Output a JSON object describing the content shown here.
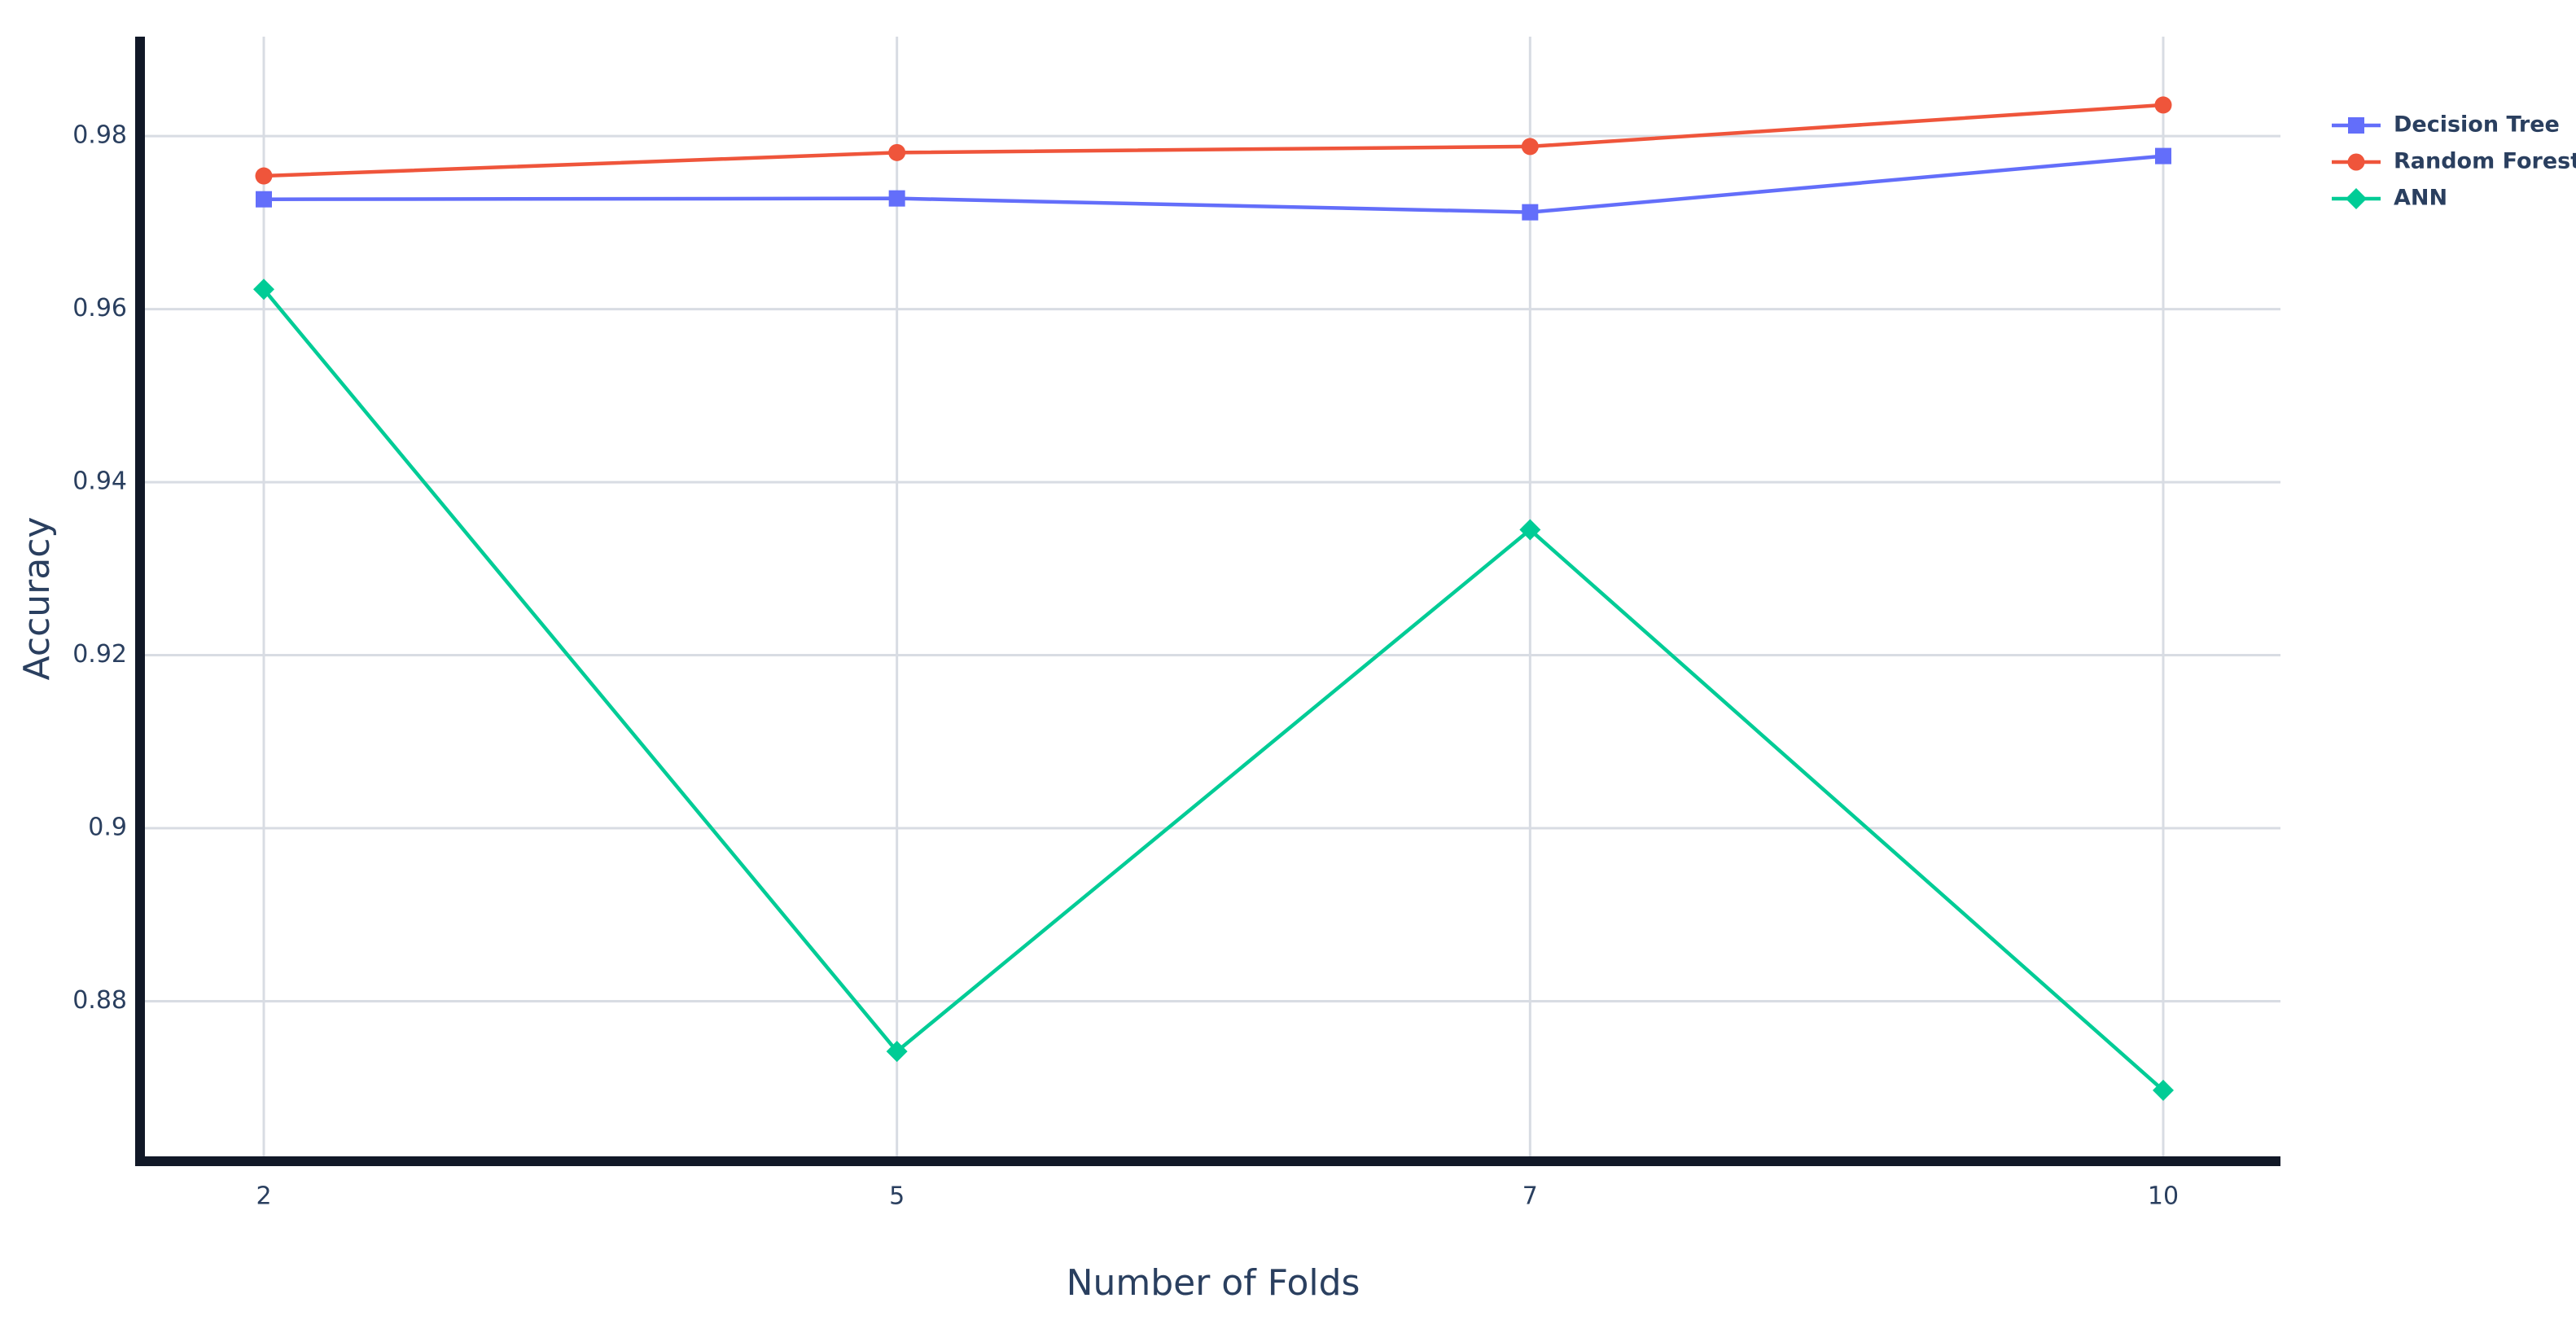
{
  "chart_data": {
    "type": "line",
    "x_label": "Number of Folds",
    "y_label": "Accuracy",
    "categories": [
      "2",
      "5",
      "7",
      "10"
    ],
    "series": [
      {
        "name": "Decision Tree",
        "color": "#636efa",
        "marker": "square",
        "values": [
          0.9727,
          0.9728,
          0.9712,
          0.9777
        ]
      },
      {
        "name": "Random Forest",
        "color": "#ef553b",
        "marker": "circle",
        "values": [
          0.9754,
          0.9781,
          0.9788,
          0.9836
        ]
      },
      {
        "name": "ANN",
        "color": "#00cc96",
        "marker": "diamond",
        "values": [
          0.9623,
          0.8742,
          0.9345,
          0.8697
        ]
      }
    ],
    "ylim": [
      0.8615,
      0.9915
    ],
    "yticks": [
      0.88,
      0.9,
      0.92,
      0.94,
      0.96,
      0.98
    ],
    "grid": true,
    "legend": "right"
  }
}
